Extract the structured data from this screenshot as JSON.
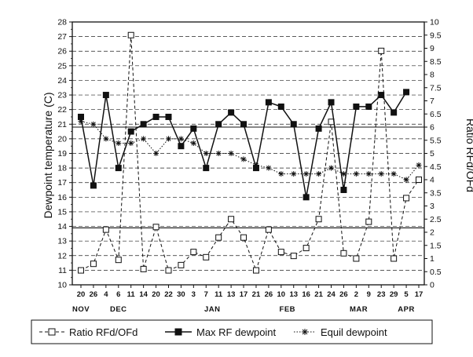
{
  "chart_data": {
    "type": "line",
    "title": "",
    "ylabel": "Dewpoint temperature (C)",
    "y2label": "Ratio RFd/OFd",
    "ylim": [
      10,
      28
    ],
    "y2lim": [
      0,
      10
    ],
    "yticks": [
      10,
      11,
      12,
      13,
      14,
      15,
      16,
      17,
      18,
      19,
      20,
      21,
      22,
      23,
      24,
      25,
      26,
      27,
      28
    ],
    "y2ticks": [
      "0",
      "0.5",
      "1",
      "1.5",
      "2",
      "2.5",
      "3",
      "3.5",
      "4",
      "4.5",
      "5",
      "5.5",
      "6",
      "6.5",
      "7",
      "7.5",
      "8",
      "8.5",
      "9",
      "9.5",
      "10"
    ],
    "grid": true,
    "x_labels": [
      "20",
      "26",
      "4",
      "6",
      "11",
      "14",
      "20",
      "22",
      "30",
      "3",
      "7",
      "11",
      "13",
      "17",
      "21",
      "26",
      "10",
      "13",
      "16",
      "21",
      "24",
      "26",
      "2",
      "9",
      "23",
      "29",
      "5",
      "17"
    ],
    "months": [
      {
        "label": "NOV",
        "at": 0
      },
      {
        "label": "DEC",
        "at": 3
      },
      {
        "label": "JAN",
        "at": 10.5
      },
      {
        "label": "FEB",
        "at": 16.5
      },
      {
        "label": "MAR",
        "at": 22.2
      },
      {
        "label": "APR",
        "at": 26
      }
    ],
    "reference_lines_y": [
      20.8,
      13.9
    ],
    "series": [
      {
        "name": "Ratio RFd/OFd",
        "style": "dashed",
        "marker": "open-square",
        "axis": "right",
        "values": [
          0.55,
          0.8,
          2.1,
          0.95,
          9.5,
          0.6,
          2.2,
          0.55,
          0.75,
          1.25,
          1.05,
          1.8,
          2.5,
          1.8,
          0.55,
          2.1,
          1.25,
          1.1,
          1.4,
          2.5,
          6.2,
          1.2,
          1.0,
          2.4,
          8.9,
          1.0,
          3.3,
          4.0
        ]
      },
      {
        "name": "Max RF dewpoint",
        "style": "solid",
        "marker": "filled-square",
        "axis": "left",
        "values": [
          21.5,
          16.8,
          23.0,
          18.0,
          20.5,
          21.0,
          21.5,
          21.5,
          19.5,
          20.7,
          18.0,
          21.0,
          21.8,
          21.0,
          18.0,
          22.5,
          22.2,
          21.0,
          16.0,
          20.7,
          22.5,
          16.5,
          22.2,
          22.2,
          23.0,
          21.8,
          23.2,
          null
        ]
      },
      {
        "name": "Equil dewpoint",
        "style": "dotted",
        "marker": "asterisk",
        "axis": "left",
        "values": [
          21.2,
          21.0,
          20.0,
          19.7,
          19.7,
          20.0,
          19.0,
          20.0,
          20.0,
          19.7,
          19.0,
          19.0,
          19.0,
          18.6,
          18.2,
          18.0,
          17.6,
          17.6,
          17.6,
          17.6,
          18.0,
          17.6,
          17.6,
          17.6,
          17.6,
          17.6,
          17.2,
          18.2
        ]
      }
    ]
  },
  "legend": {
    "items": [
      {
        "label": "Ratio RFd/OFd"
      },
      {
        "label": "Max RF dewpoint"
      },
      {
        "label": "Equil dewpoint"
      }
    ]
  }
}
